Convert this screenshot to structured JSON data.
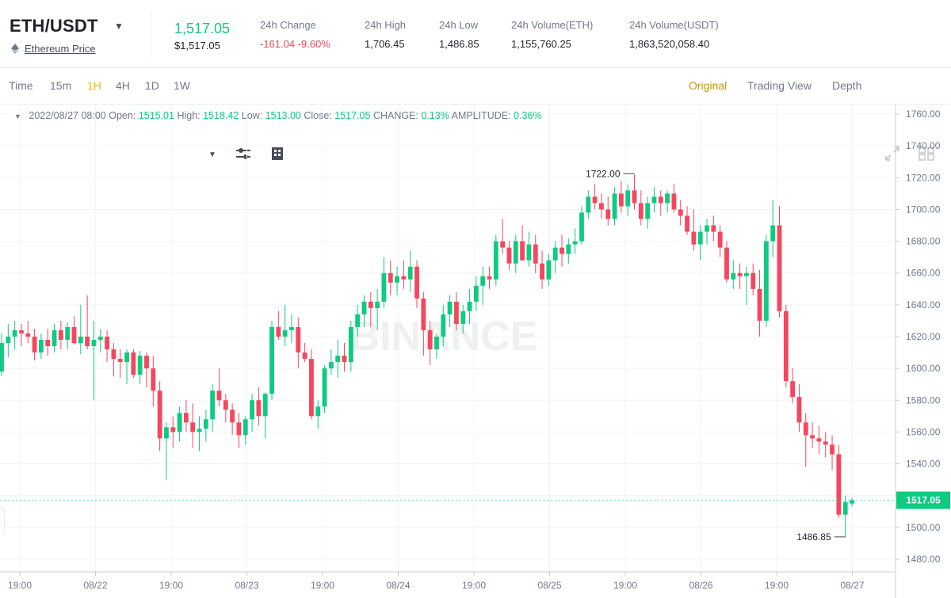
{
  "header": {
    "pair": "ETH/USDT",
    "sub_link": "Ethereum Price",
    "last_price": "1,517.05",
    "last_price_usd": "$1,517.05",
    "stats": [
      {
        "label": "24h Change",
        "value": "-161.04 -9.60%",
        "color": "red"
      },
      {
        "label": "24h High",
        "value": "1,706.45"
      },
      {
        "label": "24h Low",
        "value": "1,486.85"
      },
      {
        "label": "24h Volume(ETH)",
        "value": "1,155,760.25"
      },
      {
        "label": "24h Volume(USDT)",
        "value": "1,863,520,058.40"
      }
    ]
  },
  "toolbar": {
    "intervals": [
      "Time",
      "15m",
      "1H",
      "4H",
      "1D",
      "1W"
    ],
    "active_interval": "1H",
    "views": [
      "Original",
      "Trading View",
      "Depth"
    ],
    "active_view": "Original",
    "icons": [
      "chevron-down-icon",
      "indicator-settings-icon",
      "chart-layout-icon",
      "fullscreen-icon",
      "grid-icon"
    ]
  },
  "ohlc": {
    "datetime": "2022/08/27 08:00",
    "open_label": "Open:",
    "open": "1515.01",
    "high_label": "High:",
    "high": "1518.42",
    "low_label": "Low:",
    "low": "1513.00",
    "close_label": "Close:",
    "close": "1517.05",
    "change_label": "CHANGE:",
    "change": "0.13%",
    "amplitude_label": "AMPLITUDE:",
    "amplitude": "0.36%"
  },
  "colors": {
    "up": "#0ecb81",
    "down": "#f6465d",
    "accent": "#f0b90b"
  },
  "chart_data": {
    "type": "candlestick",
    "watermark": "BINANCE",
    "y_ticks": [
      1480,
      1500,
      1520,
      1540,
      1560,
      1580,
      1600,
      1620,
      1640,
      1660,
      1680,
      1700,
      1720,
      1740,
      1760
    ],
    "ylim": [
      1472,
      1766
    ],
    "x_tick_labels": [
      "19:00",
      "08/22",
      "19:00",
      "08/23",
      "19:00",
      "08/24",
      "19:00",
      "08/25",
      "19:00",
      "08/26",
      "19:00",
      "08/27"
    ],
    "max_label": "1722.00",
    "min_label": "1486.85",
    "current_price_label": "1517.05",
    "candles": [
      [
        1598,
        1622,
        1595,
        1616
      ],
      [
        1616,
        1628,
        1607,
        1620
      ],
      [
        1620,
        1630,
        1612,
        1624
      ],
      [
        1624,
        1628,
        1614,
        1622
      ],
      [
        1622,
        1630,
        1616,
        1620
      ],
      [
        1620,
        1625,
        1605,
        1610
      ],
      [
        1610,
        1622,
        1606,
        1618
      ],
      [
        1618,
        1625,
        1608,
        1614
      ],
      [
        1614,
        1628,
        1610,
        1624
      ],
      [
        1624,
        1630,
        1612,
        1618
      ],
      [
        1618,
        1629,
        1612,
        1626
      ],
      [
        1626,
        1633,
        1615,
        1616
      ],
      [
        1616,
        1640,
        1609,
        1620
      ],
      [
        1620,
        1646,
        1612,
        1614
      ],
      [
        1614,
        1630,
        1580,
        1618
      ],
      [
        1618,
        1625,
        1610,
        1620
      ],
      [
        1620,
        1624,
        1604,
        1612
      ],
      [
        1612,
        1616,
        1595,
        1606
      ],
      [
        1606,
        1612,
        1594,
        1604
      ],
      [
        1604,
        1612,
        1590,
        1610
      ],
      [
        1610,
        1612,
        1594,
        1596
      ],
      [
        1596,
        1611,
        1590,
        1608
      ],
      [
        1608,
        1610,
        1588,
        1600
      ],
      [
        1600,
        1608,
        1576,
        1586
      ],
      [
        1586,
        1592,
        1548,
        1556
      ],
      [
        1556,
        1566,
        1530,
        1563
      ],
      [
        1563,
        1570,
        1550,
        1560
      ],
      [
        1560,
        1576,
        1554,
        1572
      ],
      [
        1572,
        1580,
        1560,
        1566
      ],
      [
        1566,
        1578,
        1550,
        1560
      ],
      [
        1560,
        1570,
        1548,
        1562
      ],
      [
        1562,
        1574,
        1554,
        1568
      ],
      [
        1568,
        1590,
        1560,
        1586
      ],
      [
        1586,
        1600,
        1576,
        1580
      ],
      [
        1580,
        1584,
        1566,
        1574
      ],
      [
        1574,
        1578,
        1558,
        1566
      ],
      [
        1566,
        1572,
        1550,
        1558
      ],
      [
        1558,
        1570,
        1552,
        1568
      ],
      [
        1568,
        1584,
        1560,
        1580
      ],
      [
        1580,
        1588,
        1564,
        1570
      ],
      [
        1570,
        1585,
        1556,
        1584
      ],
      [
        1584,
        1630,
        1580,
        1626
      ],
      [
        1626,
        1636,
        1618,
        1620
      ],
      [
        1620,
        1640,
        1614,
        1624
      ],
      [
        1624,
        1634,
        1616,
        1626
      ],
      [
        1626,
        1632,
        1600,
        1610
      ],
      [
        1610,
        1616,
        1604,
        1606
      ],
      [
        1606,
        1612,
        1568,
        1570
      ],
      [
        1570,
        1580,
        1562,
        1576
      ],
      [
        1576,
        1602,
        1572,
        1600
      ],
      [
        1600,
        1612,
        1596,
        1604
      ],
      [
        1604,
        1618,
        1594,
        1608
      ],
      [
        1608,
        1616,
        1598,
        1604
      ],
      [
        1604,
        1630,
        1598,
        1626
      ],
      [
        1626,
        1640,
        1620,
        1634
      ],
      [
        1634,
        1646,
        1626,
        1642
      ],
      [
        1642,
        1648,
        1626,
        1638
      ],
      [
        1638,
        1650,
        1624,
        1642
      ],
      [
        1642,
        1670,
        1638,
        1660
      ],
      [
        1660,
        1668,
        1646,
        1654
      ],
      [
        1654,
        1664,
        1646,
        1658
      ],
      [
        1658,
        1668,
        1650,
        1656
      ],
      [
        1656,
        1674,
        1648,
        1664
      ],
      [
        1664,
        1668,
        1638,
        1644
      ],
      [
        1644,
        1648,
        1608,
        1624
      ],
      [
        1624,
        1630,
        1602,
        1612
      ],
      [
        1612,
        1622,
        1606,
        1620
      ],
      [
        1620,
        1640,
        1614,
        1634
      ],
      [
        1634,
        1646,
        1626,
        1642
      ],
      [
        1642,
        1648,
        1624,
        1628
      ],
      [
        1628,
        1640,
        1622,
        1636
      ],
      [
        1636,
        1650,
        1628,
        1642
      ],
      [
        1642,
        1658,
        1636,
        1652
      ],
      [
        1652,
        1664,
        1640,
        1658
      ],
      [
        1658,
        1664,
        1650,
        1656
      ],
      [
        1656,
        1684,
        1652,
        1680
      ],
      [
        1680,
        1694,
        1672,
        1676
      ],
      [
        1676,
        1680,
        1662,
        1666
      ],
      [
        1666,
        1684,
        1660,
        1680
      ],
      [
        1680,
        1690,
        1668,
        1668
      ],
      [
        1668,
        1686,
        1664,
        1678
      ],
      [
        1678,
        1684,
        1660,
        1666
      ],
      [
        1666,
        1674,
        1650,
        1656
      ],
      [
        1656,
        1672,
        1652,
        1668
      ],
      [
        1668,
        1680,
        1660,
        1676
      ],
      [
        1676,
        1684,
        1664,
        1672
      ],
      [
        1672,
        1682,
        1666,
        1678
      ],
      [
        1678,
        1688,
        1672,
        1680
      ],
      [
        1680,
        1702,
        1678,
        1698
      ],
      [
        1698,
        1712,
        1694,
        1708
      ],
      [
        1708,
        1716,
        1700,
        1704
      ],
      [
        1704,
        1710,
        1694,
        1700
      ],
      [
        1700,
        1708,
        1690,
        1694
      ],
      [
        1694,
        1714,
        1690,
        1710
      ],
      [
        1710,
        1718,
        1698,
        1702
      ],
      [
        1702,
        1716,
        1696,
        1712
      ],
      [
        1712,
        1722,
        1700,
        1704
      ],
      [
        1704,
        1712,
        1690,
        1694
      ],
      [
        1694,
        1708,
        1688,
        1704
      ],
      [
        1704,
        1714,
        1698,
        1708
      ],
      [
        1708,
        1712,
        1696,
        1704
      ],
      [
        1704,
        1712,
        1698,
        1710
      ],
      [
        1710,
        1716,
        1698,
        1700
      ],
      [
        1700,
        1706,
        1690,
        1696
      ],
      [
        1696,
        1702,
        1684,
        1686
      ],
      [
        1686,
        1700,
        1674,
        1678
      ],
      [
        1678,
        1690,
        1668,
        1686
      ],
      [
        1686,
        1694,
        1678,
        1690
      ],
      [
        1690,
        1696,
        1680,
        1686
      ],
      [
        1686,
        1690,
        1670,
        1676
      ],
      [
        1676,
        1680,
        1654,
        1656
      ],
      [
        1656,
        1668,
        1650,
        1660
      ],
      [
        1660,
        1666,
        1650,
        1658
      ],
      [
        1658,
        1664,
        1640,
        1660
      ],
      [
        1660,
        1666,
        1646,
        1650
      ],
      [
        1650,
        1662,
        1620,
        1630
      ],
      [
        1630,
        1684,
        1626,
        1680
      ],
      [
        1680,
        1706,
        1670,
        1690
      ],
      [
        1690,
        1702,
        1632,
        1636
      ],
      [
        1636,
        1640,
        1588,
        1592
      ],
      [
        1592,
        1600,
        1578,
        1582
      ],
      [
        1582,
        1590,
        1560,
        1566
      ],
      [
        1566,
        1572,
        1538,
        1558
      ],
      [
        1558,
        1566,
        1550,
        1556
      ],
      [
        1556,
        1564,
        1546,
        1554
      ],
      [
        1554,
        1560,
        1544,
        1552
      ],
      [
        1552,
        1558,
        1536,
        1546
      ],
      [
        1546,
        1552,
        1506,
        1508
      ],
      [
        1508,
        1520,
        1494,
        1516
      ],
      [
        1515.01,
        1518.42,
        1513,
        1517.05
      ]
    ]
  }
}
